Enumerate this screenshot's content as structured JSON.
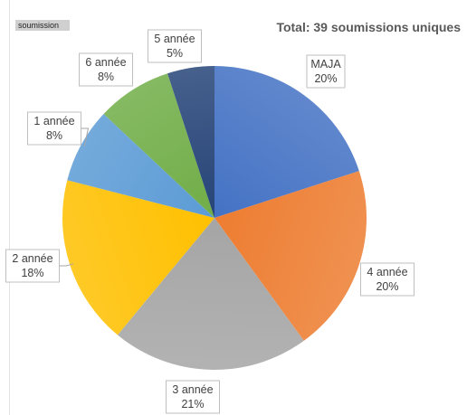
{
  "tag_label": "soumission",
  "total_label": "Total: 39 soumissions uniques",
  "chart_data": {
    "type": "pie",
    "title": "Total: 39 soumissions uniques",
    "slices": [
      {
        "label": "MAJA",
        "value": 20,
        "value_label": "20%",
        "color": "#4472c4"
      },
      {
        "label": "4 année",
        "value": 20,
        "value_label": "20%",
        "color": "#ed7d31"
      },
      {
        "label": "3 année",
        "value": 21,
        "value_label": "21%",
        "color": "#a5a5a5"
      },
      {
        "label": "2 année",
        "value": 18,
        "value_label": "18%",
        "color": "#ffc000"
      },
      {
        "label": "1 année",
        "value": 8,
        "value_label": "8%",
        "color": "#5b9bd5"
      },
      {
        "label": "6 année",
        "value": 8,
        "value_label": "8%",
        "color": "#70ad47"
      },
      {
        "label": "5 année",
        "value": 5,
        "value_label": "5%",
        "color": "#264478"
      }
    ]
  }
}
